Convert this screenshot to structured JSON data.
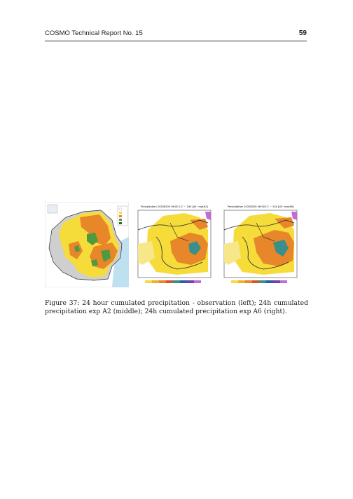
{
  "header": {
    "left": "COSMO Technical Report No. 15",
    "page_number": "59"
  },
  "figure": {
    "panels": [
      {
        "id": "left",
        "kind": "observation map"
      },
      {
        "id": "middle",
        "kind": "model precipitation map",
        "title": "Precipitation 20208200 06:00 L'C ~ 24h [d2~mptA2]"
      },
      {
        "id": "right",
        "kind": "model precipitation map",
        "title": "Precipitation 20208200 06:00 J'C ~ 24h [d2~mptA6]"
      }
    ],
    "caption": "Figure 37: 24 hour cumulated precipitation - observation (left); 24h cumulated precipitation exp A2 (middle); 24h cumulated precipitation exp A6 (right)."
  },
  "colors": {
    "yellow": "#f5dc3a",
    "orange": "#e8862a",
    "green": "#4f9a3e",
    "grey": "#cfcfcf",
    "sea": "#bfe0ef"
  }
}
